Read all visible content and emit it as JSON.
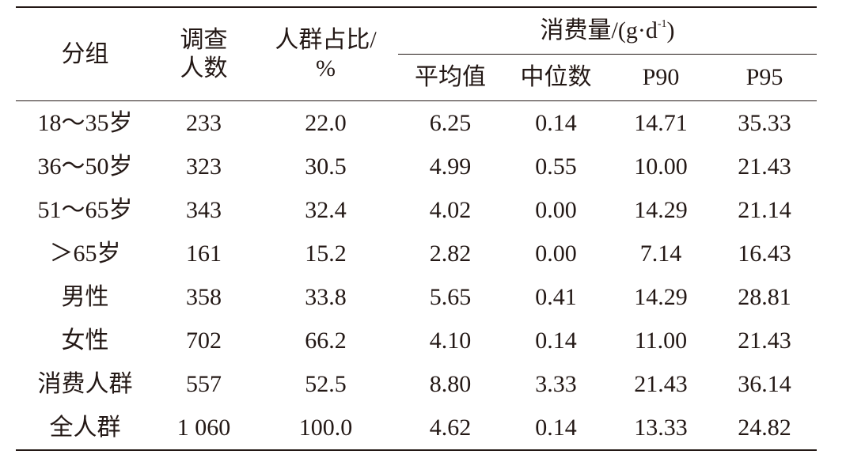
{
  "table": {
    "header": {
      "group": "分组",
      "count": [
        "调查",
        "人数"
      ],
      "share": [
        "人群占比/",
        "%"
      ],
      "consumption": {
        "text": "消费量/(g·d",
        "sup": "-1",
        "close": ")"
      },
      "stats": [
        "平均值",
        "中位数",
        "P90",
        "P95"
      ]
    },
    "rows": [
      [
        "18～35岁",
        "233",
        "22.0",
        "6.25",
        "0.14",
        "14.71",
        "35.33"
      ],
      [
        "36～50岁",
        "323",
        "30.5",
        "4.99",
        "0.55",
        "10.00",
        "21.43"
      ],
      [
        "51～65岁",
        "343",
        "32.4",
        "4.02",
        "0.00",
        "14.29",
        "21.14"
      ],
      [
        "＞65岁",
        "161",
        "15.2",
        "2.82",
        "0.00",
        "7.14",
        "16.43"
      ],
      [
        "男性",
        "358",
        "33.8",
        "5.65",
        "0.41",
        "14.29",
        "28.81"
      ],
      [
        "女性",
        "702",
        "66.2",
        "4.10",
        "0.14",
        "11.00",
        "21.43"
      ],
      [
        "消费人群",
        "557",
        "52.5",
        "8.80",
        "3.33",
        "21.43",
        "36.14"
      ],
      [
        "全人群",
        "1 060",
        "100.0",
        "4.62",
        "0.14",
        "13.33",
        "24.82"
      ]
    ]
  }
}
